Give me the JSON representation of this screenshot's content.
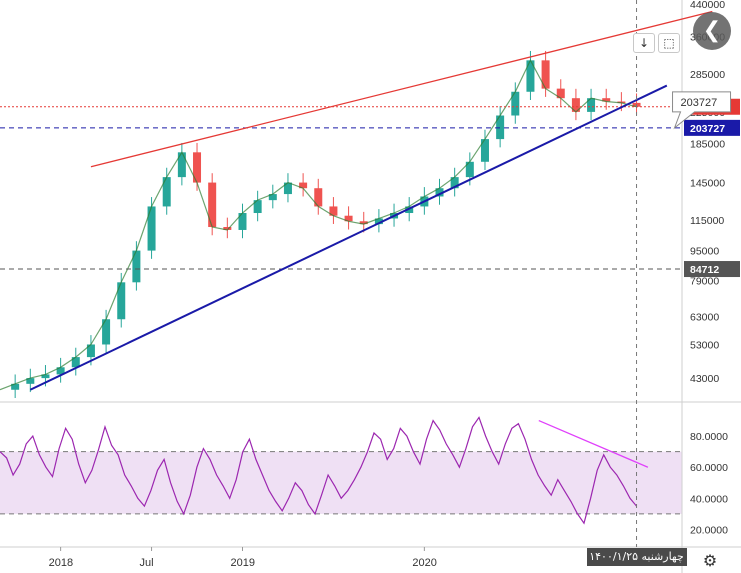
{
  "chart_data": [
    {
      "type": "candlestick",
      "panel": "price",
      "title": "",
      "y_scale": "log",
      "ylim": [
        38000,
        440000
      ],
      "y_ticks": [
        "440000",
        "360000",
        "285000",
        "225000",
        "185000",
        "145000",
        "115000",
        "95000",
        "79000",
        "63000",
        "53000",
        "43000"
      ],
      "x_ticks": [
        "2018",
        "Jul",
        "2019",
        "2020"
      ],
      "x_tick_dates": [
        "2018-01",
        "2018-07",
        "2019-01",
        "2020-01"
      ],
      "xlim": [
        "2017-09",
        "2021-06"
      ],
      "close_series": [
        [
          "2017-09",
          40000
        ],
        [
          "2017-10",
          41500
        ],
        [
          "2017-11",
          43000
        ],
        [
          "2017-12",
          44000
        ],
        [
          "2018-01",
          46000
        ],
        [
          "2018-02",
          49000
        ],
        [
          "2018-03",
          53000
        ],
        [
          "2018-04",
          62000
        ],
        [
          "2018-05",
          78000
        ],
        [
          "2018-06",
          95000
        ],
        [
          "2018-07",
          125000
        ],
        [
          "2018-08",
          150000
        ],
        [
          "2018-09",
          175000
        ],
        [
          "2018-10",
          145000
        ],
        [
          "2018-11",
          110000
        ],
        [
          "2018-12",
          108000
        ],
        [
          "2019-01",
          120000
        ],
        [
          "2019-02",
          130000
        ],
        [
          "2019-03",
          135000
        ],
        [
          "2019-04",
          145000
        ],
        [
          "2019-05",
          140000
        ],
        [
          "2019-06",
          125000
        ],
        [
          "2019-07",
          118000
        ],
        [
          "2019-08",
          114000
        ],
        [
          "2019-09",
          112000
        ],
        [
          "2019-10",
          116000
        ],
        [
          "2019-11",
          120000
        ],
        [
          "2019-12",
          125000
        ],
        [
          "2020-01",
          133000
        ],
        [
          "2020-02",
          140000
        ],
        [
          "2020-03",
          150000
        ],
        [
          "2020-04",
          165000
        ],
        [
          "2020-05",
          190000
        ],
        [
          "2020-06",
          220000
        ],
        [
          "2020-07",
          255000
        ],
        [
          "2020-08",
          310000
        ],
        [
          "2020-09",
          260000
        ],
        [
          "2020-10",
          245000
        ],
        [
          "2020-11",
          225000
        ],
        [
          "2020-12",
          245000
        ],
        [
          "2021-01",
          240000
        ],
        [
          "2021-02",
          238000
        ],
        [
          "2021-03",
          232310
        ]
      ],
      "horizontal_levels": [
        {
          "value": 232310,
          "label": "232310",
          "style": "dotted",
          "color": "#e53935"
        },
        {
          "value": 203727,
          "label": "203727",
          "style": "dashed",
          "color": "#1a1aa8"
        },
        {
          "value": 84712,
          "label": "84712",
          "style": "dashed",
          "color": "#555555"
        }
      ],
      "trendlines": [
        {
          "name": "upper-resistance",
          "color": "#e53935",
          "from": [
            "2018-03",
            160000
          ],
          "to": [
            "2021-08",
            420000
          ]
        },
        {
          "name": "lower-support",
          "color": "#1a1aa8",
          "from": [
            "2017-11",
            40000
          ],
          "to": [
            "2021-05",
            265000
          ]
        }
      ],
      "callout": {
        "text": "203727"
      },
      "cursor": {
        "date_label": "چهارشنبه ۱۴۰۰/۱/۲۵"
      },
      "colors": {
        "up": "#26a69a",
        "down": "#ef5350"
      }
    },
    {
      "type": "line",
      "panel": "oscillator",
      "title": "",
      "ylim": [
        10,
        100
      ],
      "y_ticks": [
        "80.0000",
        "60.0000",
        "40.0000",
        "20.0000"
      ],
      "band": [
        30,
        70
      ],
      "series": [
        {
          "values": [
            70,
            66,
            55,
            62,
            75,
            80,
            68,
            60,
            54,
            72,
            85,
            78,
            62,
            50,
            58,
            71,
            86,
            74,
            68,
            55,
            48,
            40,
            35,
            45,
            58,
            65,
            50,
            38,
            30,
            42,
            60,
            72,
            65,
            55,
            48,
            40,
            52,
            70,
            78,
            65,
            55,
            45,
            38,
            32,
            40,
            50,
            45,
            36,
            30,
            42,
            55,
            48,
            40,
            45,
            52,
            60,
            70,
            82,
            78,
            65,
            72,
            85,
            80,
            70,
            62,
            78,
            90,
            84,
            75,
            68,
            60,
            72,
            86,
            92,
            80,
            70,
            62,
            75,
            85,
            88,
            78,
            65,
            55,
            48,
            42,
            52,
            45,
            38,
            30,
            24,
            40,
            58,
            68,
            60,
            55,
            48,
            40,
            35
          ],
          "color": "#9c27b0"
        }
      ],
      "trendline": {
        "color": "#e040fb",
        "from": [
          0.79,
          90
        ],
        "to": [
          0.95,
          60
        ]
      }
    }
  ],
  "ui": {
    "down_icon": "arrow-down-icon",
    "fit_icon": "fit-screen-icon",
    "back_icon": "chevron-left-icon",
    "settings_icon": "gear-icon",
    "down_glyph": "↓",
    "fit_glyph": "⬚",
    "back_glyph": "❮",
    "settings_glyph": "⚙"
  }
}
